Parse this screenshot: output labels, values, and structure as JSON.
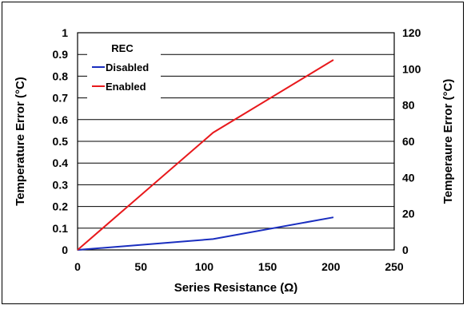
{
  "chart_data": {
    "type": "line",
    "title": "",
    "xlabel": "Series Resistance (Ω)",
    "ylabel": "Temperature Error (°C)",
    "y2label": "Temperaure Error (°C)",
    "xlim": [
      0,
      250
    ],
    "ylim": [
      0,
      1
    ],
    "y2lim": [
      0,
      120
    ],
    "x_ticks": [
      "0",
      "50",
      "100",
      "150",
      "200",
      "250"
    ],
    "y_ticks": [
      "0",
      "0.1",
      "0.2",
      "0.3",
      "0.4",
      "0.5",
      "0.6",
      "0.7",
      "0.8",
      "0.9",
      "1"
    ],
    "y2_ticks": [
      "0",
      "20",
      "40",
      "60",
      "80",
      "100",
      "120"
    ],
    "grid": true,
    "legend": {
      "title": "REC",
      "placement": "top-left"
    },
    "series": [
      {
        "name": "Disabled",
        "color": "#1a2ebf",
        "x": [
          0,
          107,
          202
        ],
        "y": [
          0,
          0.05,
          0.15
        ]
      },
      {
        "name": "Enabled",
        "color": "#e8191c",
        "x": [
          0,
          107,
          202
        ],
        "y": [
          0,
          0.54,
          0.875
        ]
      }
    ]
  }
}
